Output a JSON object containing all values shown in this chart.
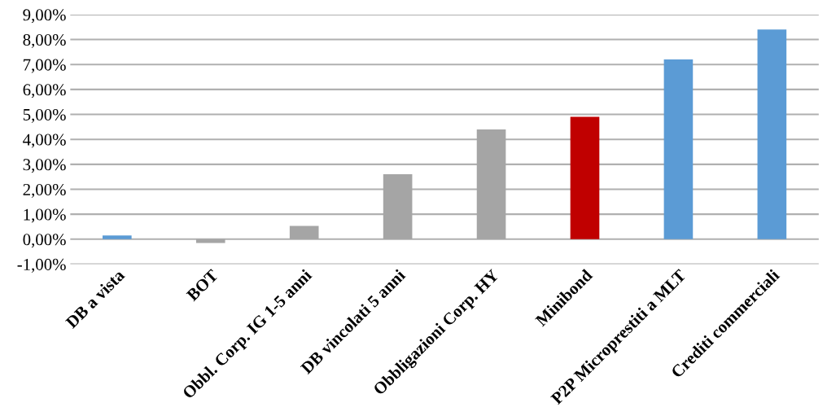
{
  "chart_data": {
    "type": "bar",
    "categories": [
      "DB a vista",
      "BOT",
      "Obbl. Corp. IG 1-5 anni",
      "DB vincolati 5 anni",
      "Obbligazioni Corp. HY",
      "Minibond",
      "P2P Microprestiti a MLT",
      "Crediti commerciali"
    ],
    "values": [
      0.15,
      -0.15,
      0.53,
      2.6,
      4.4,
      4.9,
      7.2,
      8.4
    ],
    "colors": [
      "#5b9bd5",
      "#a5a5a5",
      "#a5a5a5",
      "#a5a5a5",
      "#a5a5a5",
      "#c00000",
      "#5b9bd5",
      "#5b9bd5"
    ],
    "ylim": [
      -1,
      9
    ],
    "yticks": [
      {
        "value": -1,
        "label": "-1,00%"
      },
      {
        "value": 0,
        "label": "0,00%"
      },
      {
        "value": 1,
        "label": "1,00%"
      },
      {
        "value": 2,
        "label": "2,00%"
      },
      {
        "value": 3,
        "label": "3,00%"
      },
      {
        "value": 4,
        "label": "4,00%"
      },
      {
        "value": 5,
        "label": "5,00%"
      },
      {
        "value": 6,
        "label": "6,00%"
      },
      {
        "value": 7,
        "label": "7,00%"
      },
      {
        "value": 8,
        "label": "8,00%"
      },
      {
        "value": 9,
        "label": "9,00%"
      }
    ],
    "grid": "y"
  }
}
